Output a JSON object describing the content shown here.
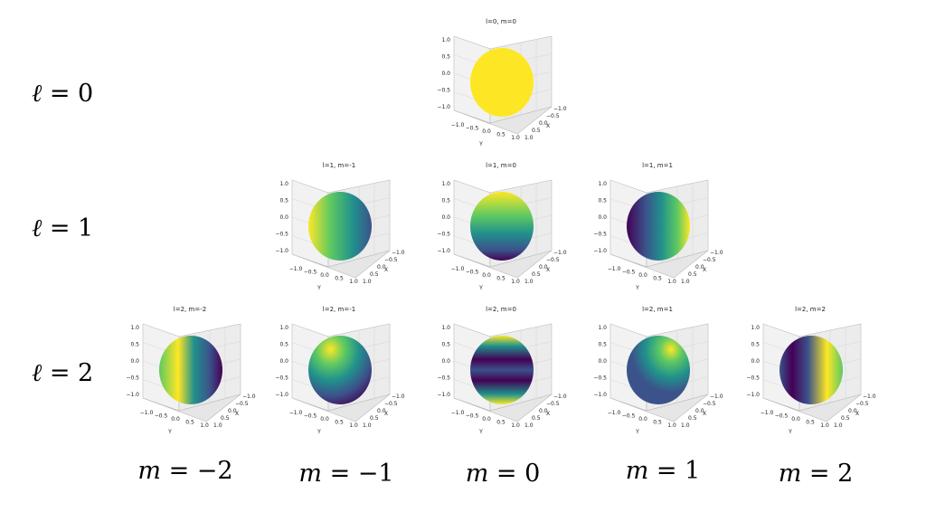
{
  "row_labels": [
    {
      "symbol": "ℓ",
      "rest": " = 0"
    },
    {
      "symbol": "ℓ",
      "rest": " = 1"
    },
    {
      "symbol": "ℓ",
      "rest": " = 2"
    }
  ],
  "col_labels": [
    {
      "symbol": "m",
      "rest": " = −2"
    },
    {
      "symbol": "m",
      "rest": " = −1"
    },
    {
      "symbol": "m",
      "rest": " = 0"
    },
    {
      "symbol": "m",
      "rest": " = 1"
    },
    {
      "symbol": "m",
      "rest": " = 2"
    }
  ],
  "axis": {
    "z_ticks": [
      "1.0",
      "0.5",
      "0.0",
      "−0.5",
      "−1.0"
    ],
    "y_ticks": [
      "−1.0",
      "−0.5",
      "0.0",
      "0.5",
      "1.0"
    ],
    "x_ticks": [
      "1.0",
      "0.5",
      "0.0",
      "−0.5",
      "−1.0"
    ],
    "x_name": "X",
    "y_name": "Y"
  },
  "colormap": [
    "#440154",
    "#3b528b",
    "#21918c",
    "#5ec962",
    "#fde725"
  ],
  "panels": [
    {
      "id": "l0m0",
      "title": "l=0, m=0",
      "l": 0,
      "m": 0,
      "shading": "uniform"
    },
    {
      "id": "l1m-1",
      "title": "l=1, m=-1",
      "l": 1,
      "m": -1,
      "shading": "left-bright"
    },
    {
      "id": "l1m0",
      "title": "l=1, m=0",
      "l": 1,
      "m": 0,
      "shading": "top-bright"
    },
    {
      "id": "l1m1",
      "title": "l=1, m=1",
      "l": 1,
      "m": 1,
      "shading": "right-bright"
    },
    {
      "id": "l2m-2",
      "title": "l=2, m=-2",
      "l": 2,
      "m": -2,
      "shading": "band-left"
    },
    {
      "id": "l2m-1",
      "title": "l=2, m=-1",
      "l": 2,
      "m": -1,
      "shading": "upper-left-bright"
    },
    {
      "id": "l2m0",
      "title": "l=2, m=0",
      "l": 2,
      "m": 0,
      "shading": "horizontal-bands"
    },
    {
      "id": "l2m1",
      "title": "l=2, m=1",
      "l": 2,
      "m": 1,
      "shading": "upper-right-bright"
    },
    {
      "id": "l2m2",
      "title": "l=2, m=2",
      "l": 2,
      "m": 2,
      "shading": "band-right"
    }
  ]
}
